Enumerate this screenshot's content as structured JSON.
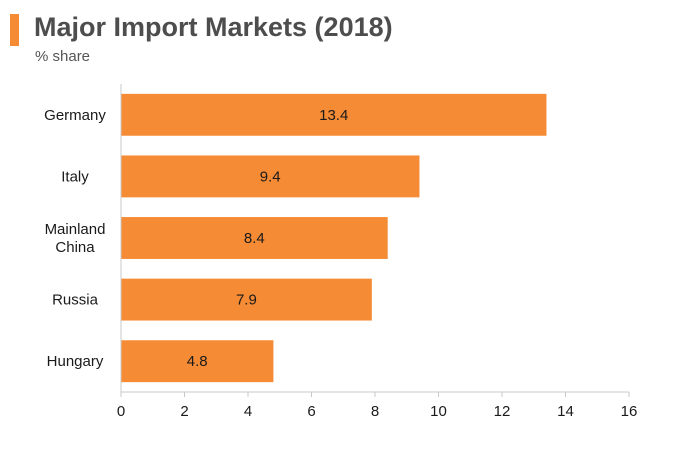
{
  "title": "Major Import Markets (2018)",
  "subtitle": "% share",
  "colors": {
    "accent": "#f58b35",
    "bar": "#f58b35",
    "axis": "#c9c9c9",
    "text": "#1a1a1a",
    "title": "#4d4d4d"
  },
  "chart_data": {
    "type": "bar",
    "orientation": "horizontal",
    "title": "Major Import Markets (2018)",
    "subtitle": "% share",
    "categories": [
      [
        "Germany"
      ],
      [
        "Italy"
      ],
      [
        "Mainland",
        "China"
      ],
      [
        "Russia"
      ],
      [
        "Hungary"
      ]
    ],
    "values": [
      13.4,
      9.4,
      8.4,
      7.9,
      4.8
    ],
    "data_labels": [
      "13.4",
      "9.4",
      "8.4",
      "7.9",
      "4.8"
    ],
    "xlim": [
      0,
      16
    ],
    "xticks": [
      0,
      2,
      4,
      6,
      8,
      10,
      12,
      14,
      16
    ],
    "grid": false,
    "legend": "none"
  }
}
